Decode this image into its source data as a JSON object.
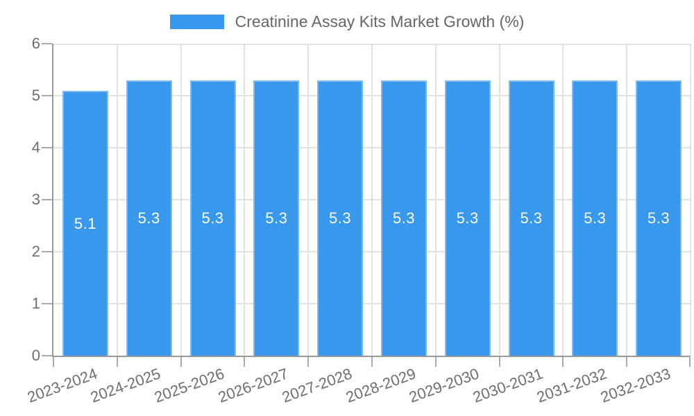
{
  "chart_data": {
    "type": "bar",
    "title": "",
    "legend": [
      "Creatinine Assay Kits Market Growth (%)"
    ],
    "legend_position": "top-center",
    "categories": [
      "2023-2024",
      "2024-2025",
      "2025-2026",
      "2026-2027",
      "2027-2028",
      "2028-2029",
      "2029-2030",
      "2030-2031",
      "2031-2032",
      "2032-2033"
    ],
    "values": [
      5.1,
      5.3,
      5.3,
      5.3,
      5.3,
      5.3,
      5.3,
      5.3,
      5.3,
      5.3
    ],
    "bar_labels": [
      "5.1",
      "5.3",
      "5.3",
      "5.3",
      "5.3",
      "5.3",
      "5.3",
      "5.3",
      "5.3",
      "5.3"
    ],
    "ylabel": "",
    "xlabel": "",
    "ylim": [
      0,
      6
    ],
    "yticks": [
      0,
      1,
      2,
      3,
      4,
      5,
      6
    ],
    "ytick_labels": [
      "0",
      "1",
      "2",
      "3",
      "4",
      "5",
      "6"
    ],
    "grid": true,
    "colors": {
      "bar_fill": "#3898ec",
      "grid_line": "#e2e2e2",
      "axis_line": "#999999",
      "tick_mark": "#aaaaaa",
      "tick_label": "#6e6e6e",
      "value_label": "#ffffff",
      "legend_text": "#666666"
    }
  }
}
